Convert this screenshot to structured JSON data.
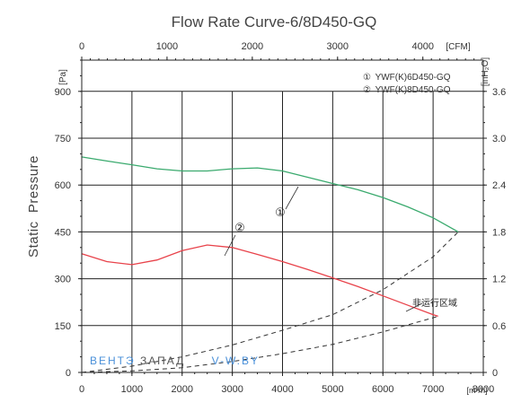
{
  "chart_data": {
    "type": "line",
    "title": "Flow Rate Curve-6/8D450-GQ",
    "ylabel": "Static  Pressure",
    "y_unit_left": "[Pa]",
    "y_unit_right": "[inH₂O]",
    "x_unit_bottom": "[m³/h]",
    "x_unit_top": "[CFM]",
    "xlim": [
      0,
      8000
    ],
    "ylim": [
      0,
      1000
    ],
    "x_ticks": [
      0,
      1000,
      2000,
      3000,
      4000,
      5000,
      6000,
      7000,
      8000
    ],
    "x_tick_labels": [
      "0",
      "1000",
      "2000",
      "3000",
      "4000",
      "5000",
      "6000",
      "7000",
      "8000"
    ],
    "y_ticks": [
      0,
      150,
      300,
      450,
      600,
      750,
      900
    ],
    "y_tick_labels": [
      "0",
      "150",
      "300",
      "450",
      "600",
      "750",
      "900"
    ],
    "top_ticks": [
      0,
      1000,
      2000,
      3000,
      4000
    ],
    "top_tick_labels": [
      "0",
      "1000",
      "2000",
      "3000",
      "4000"
    ],
    "right_ticks": [
      0,
      0.6,
      1.2,
      1.8,
      2.4,
      3.0,
      3.6
    ],
    "right_tick_labels": [
      "0",
      "0.6",
      "1.2",
      "1.8",
      "2.4",
      "3.0",
      "3.6"
    ],
    "grid": true,
    "legend_position": "top-right",
    "legend": [
      {
        "marker": "①",
        "text": "YWF(K)6D450-GQ"
      },
      {
        "marker": "②",
        "text": "YWF(K)8D450-GQ"
      }
    ],
    "series": [
      {
        "name": "YWF(K)6D450-GQ",
        "marker": "①",
        "color": "#3aaa6e",
        "x": [
          0,
          500,
          1000,
          1500,
          2000,
          2500,
          3000,
          3500,
          4000,
          4500,
          5000,
          5500,
          6000,
          6500,
          7000,
          7500
        ],
        "y": [
          690,
          677,
          665,
          652,
          645,
          645,
          652,
          655,
          645,
          625,
          605,
          585,
          560,
          530,
          495,
          450
        ]
      },
      {
        "name": "YWF(K)8D450-GQ",
        "marker": "②",
        "color": "#e8424a",
        "x": [
          0,
          500,
          1000,
          1500,
          2000,
          2500,
          3000,
          3500,
          4000,
          4500,
          5000,
          5500,
          6000,
          6500,
          7000,
          7100
        ],
        "y": [
          380,
          355,
          345,
          360,
          390,
          408,
          400,
          378,
          355,
          330,
          303,
          275,
          245,
          215,
          185,
          180
        ]
      }
    ],
    "boundary_curves": [
      {
        "x": [
          0,
          1000,
          2000,
          3000,
          4000,
          5000,
          6000,
          7000,
          7500
        ],
        "y": [
          0,
          20,
          50,
          88,
          135,
          185,
          265,
          370,
          450
        ]
      },
      {
        "x": [
          0,
          1000,
          2000,
          3000,
          4000,
          5000,
          6000,
          7000,
          7100
        ],
        "y": [
          0,
          5,
          15,
          35,
          60,
          90,
          130,
          175,
          180
        ]
      }
    ],
    "annotation": "非运行区域"
  },
  "watermark": {
    "part1": "ВЕНТЭ",
    "part2": "ЗАПАД",
    "part3": "V-W.BY"
  },
  "colors": {
    "grid": "#222222",
    "curve1": "#3aaa6e",
    "curve2": "#e8424a",
    "watermark_blue": "#4a90d9"
  }
}
